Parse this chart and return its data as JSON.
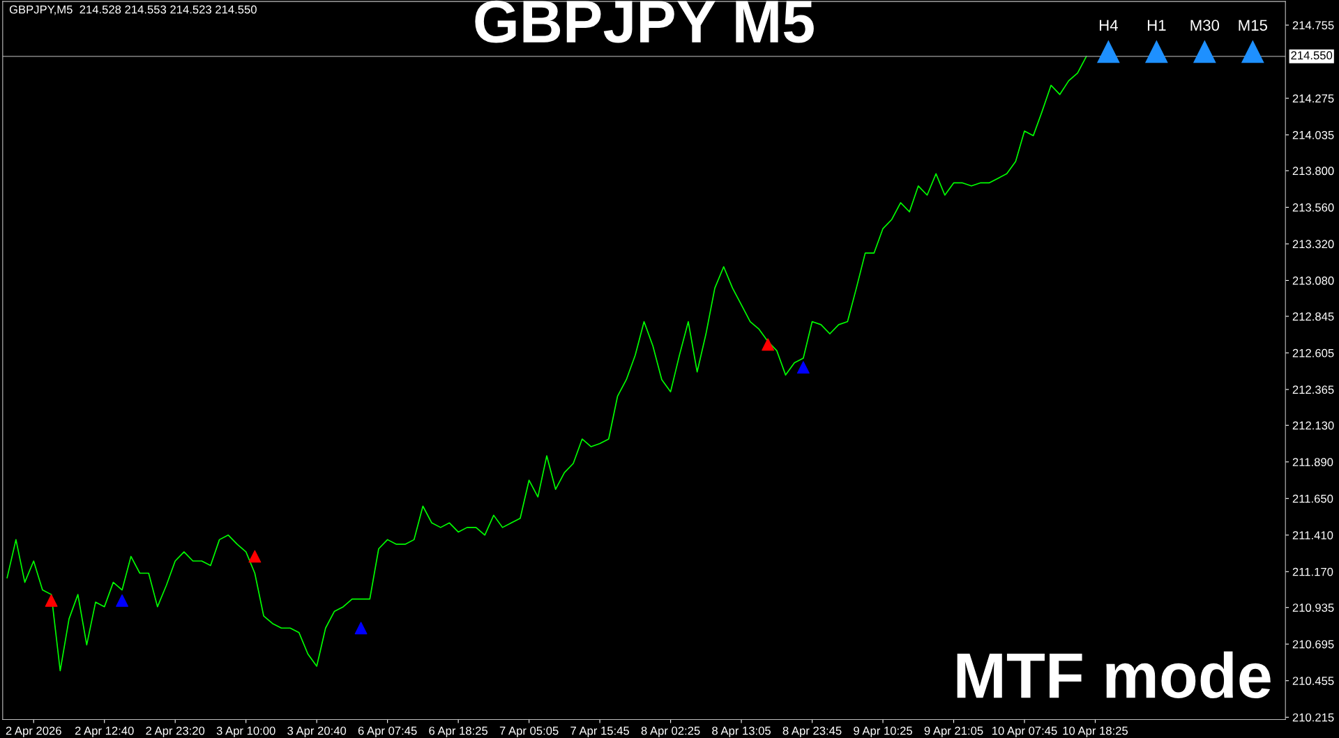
{
  "chart_data": {
    "type": "line",
    "title": "GBPJPY M5",
    "categories": [
      null,
      null,
      null,
      "2 Apr 2026",
      null,
      null,
      null,
      null,
      null,
      null,
      null,
      "2 Apr 12:40",
      null,
      null,
      null,
      null,
      null,
      null,
      null,
      "2 Apr 23:20",
      null,
      null,
      null,
      null,
      null,
      null,
      null,
      "3 Apr 10:00",
      null,
      null,
      null,
      null,
      null,
      null,
      null,
      "3 Apr 20:40",
      null,
      null,
      null,
      null,
      null,
      null,
      null,
      "6 Apr 07:45",
      null,
      null,
      null,
      null,
      null,
      null,
      null,
      "6 Apr 18:25",
      null,
      null,
      null,
      null,
      null,
      null,
      null,
      "7 Apr 05:05",
      null,
      null,
      null,
      null,
      null,
      null,
      null,
      "7 Apr 15:45",
      null,
      null,
      null,
      null,
      null,
      null,
      null,
      "8 Apr 02:25",
      null,
      null,
      null,
      null,
      null,
      null,
      null,
      "8 Apr 13:05",
      null,
      null,
      null,
      null,
      null,
      null,
      null,
      "8 Apr 23:45",
      null,
      null,
      null,
      null,
      null,
      null,
      null,
      "9 Apr 10:25",
      null,
      null,
      null,
      null,
      null,
      null,
      null,
      "9 Apr 21:05",
      null,
      null,
      null,
      null,
      null,
      null,
      null,
      "10 Apr 07:45",
      null,
      null,
      null,
      null,
      null,
      null,
      null,
      "10 Apr 18:25",
      null,
      null,
      null,
      null,
      null,
      null,
      null,
      null,
      null,
      null,
      null,
      null,
      null,
      null,
      null,
      null,
      null,
      null,
      null,
      null,
      null
    ],
    "series": [
      {
        "color": "#00ff00",
        "marker": "none",
        "values": [
          211.13,
          211.38,
          211.1,
          211.24,
          211.05,
          211.02,
          210.52,
          210.86,
          211.02,
          210.69,
          210.97,
          210.94,
          211.1,
          211.05,
          211.27,
          211.16,
          211.16,
          210.94,
          211.08,
          211.24,
          211.3,
          211.24,
          211.24,
          211.21,
          211.38,
          211.41,
          211.35,
          211.3,
          211.16,
          210.88,
          210.83,
          210.8,
          210.8,
          210.77,
          210.63,
          210.55,
          210.8,
          210.91,
          210.94,
          210.99,
          210.99,
          210.99,
          211.32,
          211.38,
          211.35,
          211.35,
          211.38,
          211.6,
          211.49,
          211.46,
          211.49,
          211.43,
          211.46,
          211.46,
          211.41,
          211.54,
          211.46,
          211.49,
          211.52,
          211.77,
          211.66,
          211.93,
          211.71,
          211.82,
          211.88,
          212.04,
          211.99,
          212.01,
          212.04,
          212.32,
          212.43,
          212.59,
          212.81,
          212.65,
          212.43,
          212.35,
          212.59,
          212.81,
          212.48,
          212.73,
          213.03,
          213.17,
          213.03,
          212.92,
          212.81,
          212.76,
          212.68,
          212.62,
          212.46,
          212.54,
          212.57,
          212.81,
          212.79,
          212.73,
          212.79,
          212.81,
          213.03,
          213.26,
          213.26,
          213.42,
          213.48,
          213.59,
          213.53,
          213.7,
          213.64,
          213.78,
          213.64,
          213.72,
          213.72,
          213.7,
          213.72,
          213.72,
          213.75,
          213.78,
          213.86,
          214.06,
          214.03,
          214.19,
          214.36,
          214.3,
          214.39,
          214.44,
          214.55,
          null,
          null,
          null,
          null,
          null,
          null,
          null,
          null,
          null,
          null,
          null,
          null,
          null,
          null,
          null,
          null,
          null,
          null,
          null,
          null,
          null,
          null
        ]
      },
      {
        "type": "scatter",
        "color": "#ff0000",
        "marker": "triangle",
        "values": [
          null,
          null,
          null,
          null,
          null,
          210.98,
          null,
          null,
          null,
          null,
          null,
          null,
          null,
          null,
          null,
          null,
          null,
          null,
          null,
          null,
          null,
          null,
          null,
          null,
          null,
          null,
          null,
          null,
          211.27,
          null,
          null,
          null,
          null,
          null,
          null,
          null,
          null,
          null,
          null,
          null,
          null,
          null,
          null,
          null,
          null,
          null,
          null,
          null,
          null,
          null,
          null,
          null,
          null,
          null,
          null,
          null,
          null,
          null,
          null,
          null,
          null,
          null,
          null,
          null,
          null,
          null,
          null,
          null,
          null,
          null,
          null,
          null,
          null,
          null,
          null,
          null,
          null,
          null,
          null,
          null,
          null,
          null,
          null,
          null,
          null,
          null,
          212.66,
          null,
          null,
          null,
          null,
          null,
          null,
          null,
          null,
          null,
          null,
          null,
          null,
          null,
          null,
          null,
          null,
          null,
          null,
          null,
          null,
          null,
          null,
          null,
          null,
          null,
          null,
          null,
          null,
          null,
          null,
          null,
          null,
          null,
          null,
          null,
          null,
          null,
          null,
          null,
          null,
          null,
          null,
          null,
          null,
          null,
          null,
          null,
          null,
          null,
          null,
          null,
          null,
          null,
          null,
          null,
          null,
          null,
          null
        ]
      },
      {
        "type": "scatter",
        "color": "#0000ff",
        "marker": "triangle",
        "values": [
          null,
          null,
          null,
          null,
          null,
          null,
          null,
          null,
          null,
          null,
          null,
          null,
          null,
          210.98,
          null,
          null,
          null,
          null,
          null,
          null,
          null,
          null,
          null,
          null,
          null,
          null,
          null,
          null,
          null,
          null,
          null,
          null,
          null,
          null,
          null,
          null,
          null,
          null,
          null,
          null,
          210.8,
          null,
          null,
          null,
          null,
          null,
          null,
          null,
          null,
          null,
          null,
          null,
          null,
          null,
          null,
          null,
          null,
          null,
          null,
          null,
          null,
          null,
          null,
          null,
          null,
          null,
          null,
          null,
          null,
          null,
          null,
          null,
          null,
          null,
          null,
          null,
          null,
          null,
          null,
          null,
          null,
          null,
          null,
          null,
          null,
          null,
          null,
          null,
          null,
          null,
          212.51,
          null,
          null,
          null,
          null,
          null,
          null,
          null,
          null,
          null,
          null,
          null,
          null,
          null,
          null,
          null,
          null,
          null,
          null,
          null,
          null,
          null,
          null,
          null,
          null,
          null,
          null,
          null,
          null,
          null,
          null,
          null,
          null,
          null,
          null,
          null,
          null,
          null,
          null,
          null,
          null,
          null,
          null,
          null,
          null,
          null,
          null,
          null,
          null,
          null,
          null,
          null,
          null,
          null,
          null
        ]
      }
    ],
    "ylim": [
      210.2,
      214.91
    ],
    "yticks": [
      {
        "value": 210.215,
        "label": "210.215"
      },
      {
        "value": 210.455,
        "label": "210.455"
      },
      {
        "value": 210.695,
        "label": "210.695"
      },
      {
        "value": 210.935,
        "label": "210.935"
      },
      {
        "value": 211.17,
        "label": "211.170"
      },
      {
        "value": 211.41,
        "label": "211.410"
      },
      {
        "value": 211.65,
        "label": "211.650"
      },
      {
        "value": 211.89,
        "label": "211.890"
      },
      {
        "value": 212.13,
        "label": "212.130"
      },
      {
        "value": 212.365,
        "label": "212.365"
      },
      {
        "value": 212.605,
        "label": "212.605"
      },
      {
        "value": 212.845,
        "label": "212.845"
      },
      {
        "value": 213.08,
        "label": "213.080"
      },
      {
        "value": 213.32,
        "label": "213.320"
      },
      {
        "value": 213.56,
        "label": "213.560"
      },
      {
        "value": 213.8,
        "label": "213.800"
      },
      {
        "value": 214.035,
        "label": "214.035"
      },
      {
        "value": 214.275,
        "label": "214.275"
      },
      {
        "value": 214.755,
        "label": "214.755"
      }
    ],
    "ref_lines": [
      {
        "axis": "y",
        "value": 214.55,
        "label": "214.550",
        "color": "#a0a0a0"
      }
    ],
    "annotations": [
      "GBPJPY,M5  214.528 214.553 214.523 214.550",
      "MTF mode",
      "H4",
      "H1",
      "M30",
      "M15"
    ],
    "grid": false,
    "legend": false
  }
}
